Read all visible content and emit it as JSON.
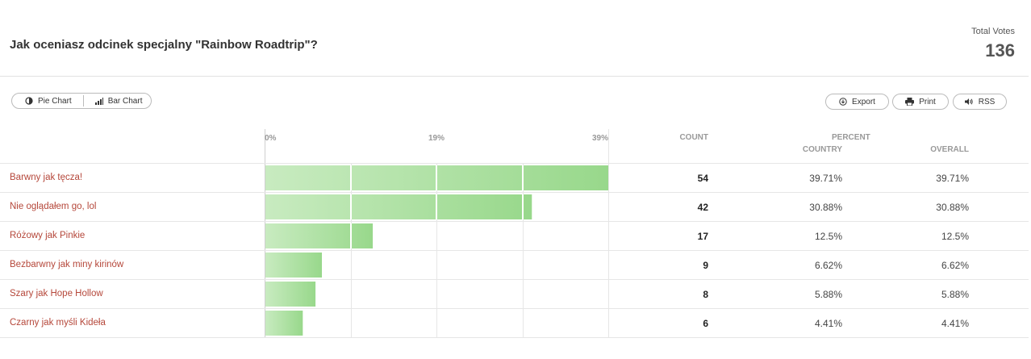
{
  "header": {
    "question": "Jak oceniasz odcinek specjalny \"Rainbow Roadtrip\"?",
    "total_label": "Total Votes",
    "total_value": "136"
  },
  "toolbar": {
    "pie_chart_label": "Pie Chart",
    "bar_chart_label": "Bar Chart",
    "export_label": "Export",
    "print_label": "Print",
    "rss_label": "RSS"
  },
  "columns": {
    "count": "COUNT",
    "percent": "PERCENT",
    "country": "COUNTRY",
    "overall": "OVERALL"
  },
  "rows": [
    {
      "label": "Barwny jak tęcza!",
      "count": "54",
      "country": "39.71%",
      "overall": "39.71%"
    },
    {
      "label": "Nie oglądałem go, lol",
      "count": "42",
      "country": "30.88%",
      "overall": "30.88%"
    },
    {
      "label": "Różowy jak Pinkie",
      "count": "17",
      "country": "12.5%",
      "overall": "12.5%"
    },
    {
      "label": "Bezbarwny jak miny kirinów",
      "count": "9",
      "country": "6.62%",
      "overall": "6.62%"
    },
    {
      "label": "Szary jak Hope Hollow",
      "count": "8",
      "country": "5.88%",
      "overall": "5.88%"
    },
    {
      "label": "Czarny jak myśli Kideła",
      "count": "6",
      "country": "4.41%",
      "overall": "4.41%"
    }
  ],
  "chart_data": {
    "type": "bar",
    "orientation": "horizontal",
    "categories": [
      "Barwny jak tęcza!",
      "Nie oglądałem go, lol",
      "Różowy jak Pinkie",
      "Bezbarwny jak miny kirinów",
      "Szary jak Hope Hollow",
      "Czarny jak myśli Kideła"
    ],
    "values": [
      39.71,
      30.88,
      12.5,
      6.62,
      5.88,
      4.41
    ],
    "tick_labels": [
      "0%",
      "19%",
      "39%"
    ],
    "xlim": [
      0,
      39.71
    ],
    "grid": true,
    "colors": {
      "bar_light": "#c8ebc0",
      "bar_dark": "#98d88b",
      "grid": "#e6e6e6"
    }
  }
}
